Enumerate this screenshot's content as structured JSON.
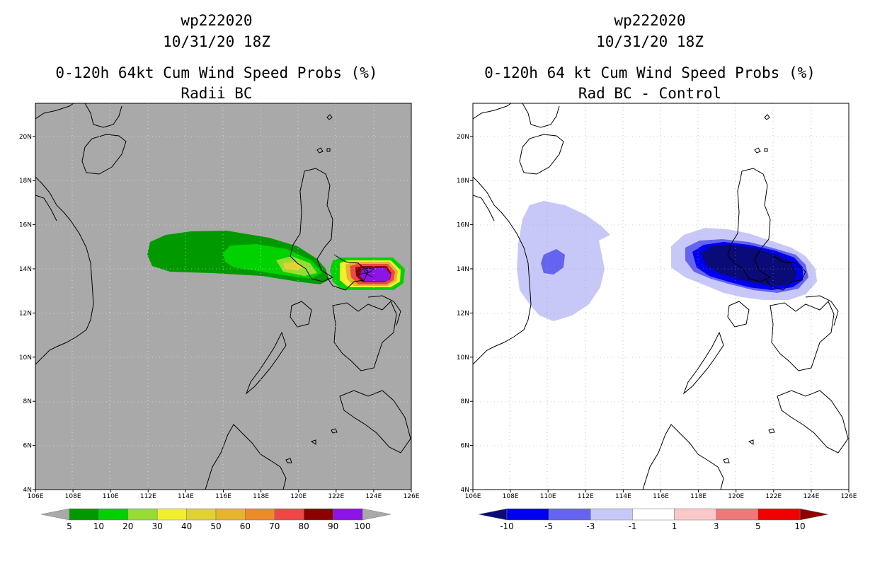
{
  "left": {
    "storm_id": "wp222020",
    "datetime": "10/31/20 18Z",
    "product": "0-120h 64kt Cum Wind Speed Probs (%)",
    "subtitle": "Radii BC",
    "colorbar": {
      "labels": [
        "5",
        "10",
        "20",
        "30",
        "40",
        "50",
        "60",
        "70",
        "80",
        "90",
        "100"
      ],
      "colors": [
        "#009a00",
        "#00d200",
        "#96dc32",
        "#f0f02d",
        "#e0d230",
        "#e6b42d",
        "#ec8c28",
        "#f04646",
        "#8c0000",
        "#8c14e6"
      ]
    }
  },
  "right": {
    "storm_id": "wp222020",
    "datetime": "10/31/20 18Z",
    "product": "0-120h 64 kt Cum Wind Speed Probs (%)",
    "subtitle": "Rad BC - Control",
    "colorbar": {
      "labels": [
        "-10",
        "-5",
        "-3",
        "-1",
        "1",
        "3",
        "5",
        "10"
      ],
      "colors": [
        "#0a0a78",
        "#0000f0",
        "#6464f0",
        "#c8c8f8",
        "#ffffff",
        "#fac8c8",
        "#f07878",
        "#f00000",
        "#8c0000"
      ]
    }
  },
  "map": {
    "lon_labels": [
      "106E",
      "108E",
      "110E",
      "112E",
      "114E",
      "116E",
      "118E",
      "120E",
      "122E",
      "124E",
      "126E"
    ],
    "lat_labels": [
      "4N",
      "6N",
      "8N",
      "10N",
      "12N",
      "14N",
      "16N",
      "18N",
      "20N"
    ]
  }
}
